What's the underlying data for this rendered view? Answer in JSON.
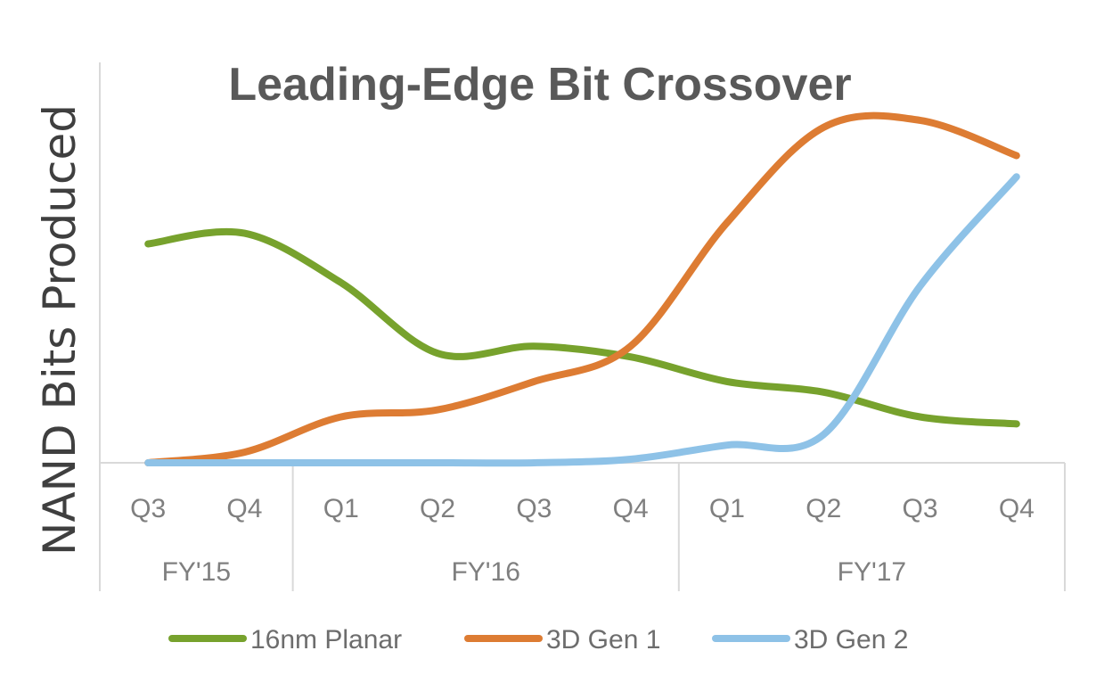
{
  "chart_data": {
    "type": "line",
    "title": "Leading-Edge Bit Crossover",
    "ylabel": "NAND Bits Produced",
    "xlabel": "",
    "quarters": [
      "Q3",
      "Q4",
      "Q1",
      "Q2",
      "Q3",
      "Q4",
      "Q1",
      "Q2",
      "Q3",
      "Q4"
    ],
    "fiscal_years": [
      {
        "label": "FY'15",
        "span": 2
      },
      {
        "label": "FY'16",
        "span": 4
      },
      {
        "label": "FY'17",
        "span": 4
      }
    ],
    "ylim": [
      0,
      100
    ],
    "y_ticks_shown": false,
    "grid": false,
    "legend_position": "bottom",
    "series": [
      {
        "name": "16nm Planar",
        "color": "#77a22d",
        "values": [
          62,
          65,
          51,
          31,
          33,
          30,
          23,
          20,
          13,
          11
        ]
      },
      {
        "name": "3D Gen 1",
        "color": "#dd7c33",
        "values": [
          0,
          3,
          13,
          15,
          23,
          33,
          68,
          95,
          97,
          87
        ]
      },
      {
        "name": "3D Gen 2",
        "color": "#8ec2e7",
        "values": [
          0,
          0,
          0,
          0,
          0,
          1,
          5,
          8,
          50,
          81
        ]
      }
    ]
  }
}
